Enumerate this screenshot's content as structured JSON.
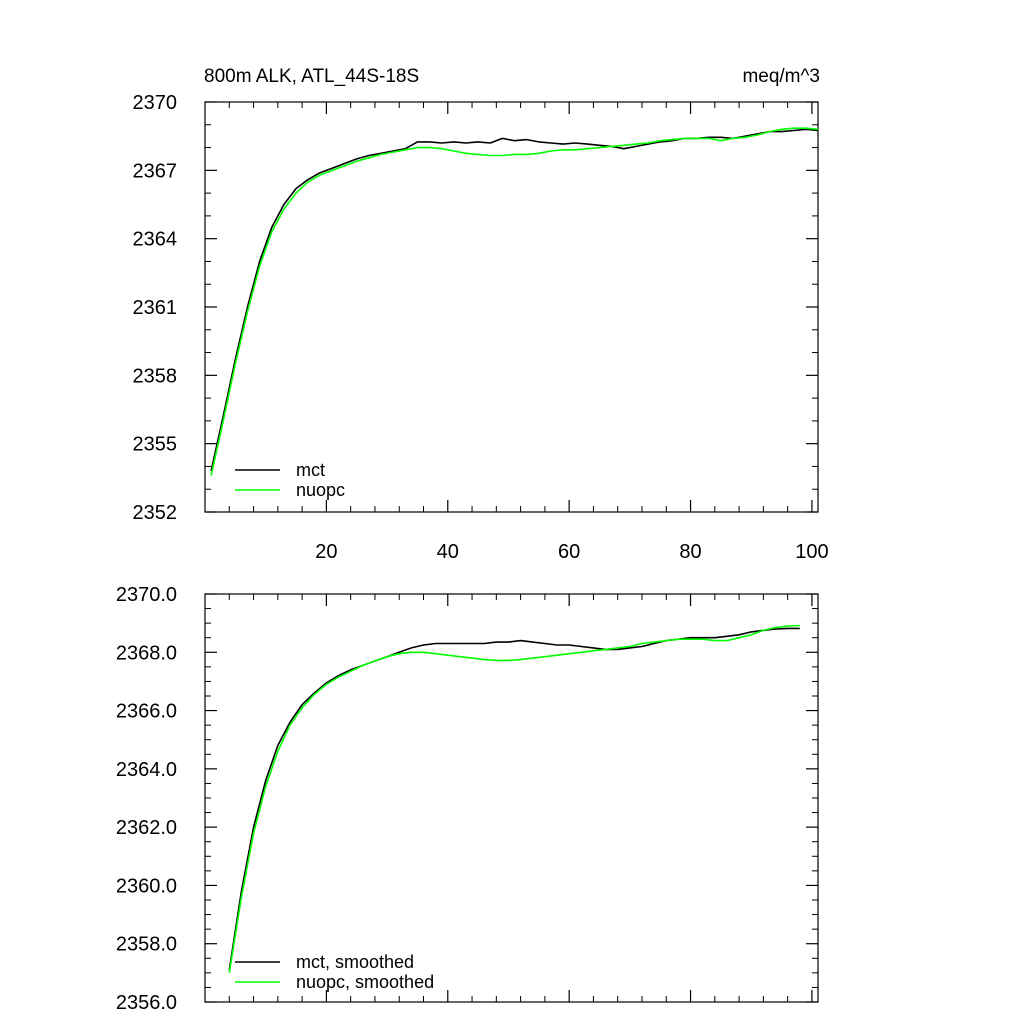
{
  "chart_data": [
    {
      "type": "line",
      "title": "800m ALK, ATL_44S-18S",
      "units": "meq/m^3",
      "xlim": [
        0,
        101
      ],
      "ylim": [
        2352,
        2370
      ],
      "xticks": [
        20,
        40,
        60,
        80,
        100
      ],
      "xtick_labels": [
        "20",
        "40",
        "60",
        "80",
        "100"
      ],
      "yticks": [
        2352,
        2355,
        2358,
        2361,
        2364,
        2367,
        2370
      ],
      "ytick_labels": [
        "2352",
        "2355",
        "2358",
        "2361",
        "2364",
        "2367",
        "2370"
      ],
      "grid": false,
      "legend_position": "bottom-left",
      "series": [
        {
          "name": "mct",
          "color": "#000000",
          "x": [
            1,
            3,
            5,
            7,
            9,
            11,
            13,
            15,
            17,
            19,
            21,
            23,
            25,
            27,
            29,
            31,
            33,
            35,
            37,
            39,
            41,
            43,
            45,
            47,
            49,
            51,
            53,
            55,
            57,
            59,
            61,
            63,
            65,
            67,
            69,
            71,
            73,
            75,
            77,
            79,
            81,
            83,
            85,
            87,
            89,
            91,
            93,
            95,
            97,
            99,
            101
          ],
          "values": [
            2353.8,
            2356.2,
            2358.7,
            2361.0,
            2363.0,
            2364.5,
            2365.5,
            2366.2,
            2366.6,
            2366.9,
            2367.1,
            2367.3,
            2367.5,
            2367.65,
            2367.75,
            2367.85,
            2367.95,
            2368.25,
            2368.25,
            2368.2,
            2368.25,
            2368.2,
            2368.25,
            2368.2,
            2368.4,
            2368.3,
            2368.35,
            2368.25,
            2368.2,
            2368.15,
            2368.2,
            2368.15,
            2368.1,
            2368.05,
            2367.95,
            2368.05,
            2368.15,
            2368.25,
            2368.3,
            2368.4,
            2368.4,
            2368.45,
            2368.45,
            2368.4,
            2368.5,
            2368.6,
            2368.7,
            2368.7,
            2368.75,
            2368.8,
            2368.75
          ]
        },
        {
          "name": "nuopc",
          "color": "#00ff00",
          "x": [
            1,
            3,
            5,
            7,
            9,
            11,
            13,
            15,
            17,
            19,
            21,
            23,
            25,
            27,
            29,
            31,
            33,
            35,
            37,
            39,
            41,
            43,
            45,
            47,
            49,
            51,
            53,
            55,
            57,
            59,
            61,
            63,
            65,
            67,
            69,
            71,
            73,
            75,
            77,
            79,
            81,
            83,
            85,
            87,
            89,
            91,
            93,
            95,
            97,
            99,
            101
          ],
          "values": [
            2353.6,
            2356.0,
            2358.5,
            2360.8,
            2362.8,
            2364.3,
            2365.3,
            2366.0,
            2366.5,
            2366.8,
            2367.0,
            2367.2,
            2367.4,
            2367.55,
            2367.7,
            2367.8,
            2367.9,
            2368.0,
            2368.0,
            2367.95,
            2367.85,
            2367.75,
            2367.7,
            2367.65,
            2367.65,
            2367.7,
            2367.7,
            2367.75,
            2367.85,
            2367.9,
            2367.9,
            2367.95,
            2368.0,
            2368.05,
            2368.1,
            2368.15,
            2368.2,
            2368.3,
            2368.35,
            2368.4,
            2368.4,
            2368.4,
            2368.3,
            2368.4,
            2368.45,
            2368.55,
            2368.7,
            2368.8,
            2368.85,
            2368.85,
            2368.8
          ]
        }
      ]
    },
    {
      "type": "line",
      "title": "",
      "xlim": [
        0,
        101
      ],
      "ylim": [
        2356,
        2370
      ],
      "xticks": [
        20,
        40,
        60,
        80,
        100
      ],
      "xtick_labels": [],
      "yticks": [
        2356,
        2358,
        2360,
        2362,
        2364,
        2366,
        2368,
        2370
      ],
      "ytick_labels": [
        "2356.0",
        "2358.0",
        "2360.0",
        "2362.0",
        "2364.0",
        "2366.0",
        "2368.0",
        "2370.0"
      ],
      "grid": false,
      "legend_position": "bottom-left",
      "series": [
        {
          "name": "mct, smoothed",
          "color": "#000000",
          "x": [
            4,
            6,
            8,
            10,
            12,
            14,
            16,
            18,
            20,
            22,
            24,
            26,
            28,
            30,
            32,
            34,
            36,
            38,
            40,
            42,
            44,
            46,
            48,
            50,
            52,
            54,
            56,
            58,
            60,
            62,
            64,
            66,
            68,
            70,
            72,
            74,
            76,
            78,
            80,
            82,
            84,
            86,
            88,
            90,
            92,
            94,
            96,
            98
          ],
          "values": [
            2357.1,
            2359.8,
            2362.0,
            2363.6,
            2364.8,
            2365.6,
            2366.2,
            2366.6,
            2366.95,
            2367.2,
            2367.4,
            2367.55,
            2367.7,
            2367.85,
            2368.0,
            2368.15,
            2368.25,
            2368.3,
            2368.3,
            2368.3,
            2368.3,
            2368.3,
            2368.35,
            2368.35,
            2368.4,
            2368.35,
            2368.3,
            2368.25,
            2368.25,
            2368.2,
            2368.15,
            2368.1,
            2368.1,
            2368.15,
            2368.2,
            2368.3,
            2368.4,
            2368.45,
            2368.5,
            2368.5,
            2368.5,
            2368.55,
            2368.6,
            2368.7,
            2368.75,
            2368.8,
            2368.82,
            2368.82
          ]
        },
        {
          "name": "nuopc, smoothed",
          "color": "#00ff00",
          "x": [
            4,
            6,
            8,
            10,
            12,
            14,
            16,
            18,
            20,
            22,
            24,
            26,
            28,
            30,
            32,
            34,
            36,
            38,
            40,
            42,
            44,
            46,
            48,
            50,
            52,
            54,
            56,
            58,
            60,
            62,
            64,
            66,
            68,
            70,
            72,
            74,
            76,
            78,
            80,
            82,
            84,
            86,
            88,
            90,
            92,
            94,
            96,
            98
          ],
          "values": [
            2357.0,
            2359.6,
            2361.8,
            2363.4,
            2364.6,
            2365.5,
            2366.1,
            2366.55,
            2366.9,
            2367.15,
            2367.35,
            2367.55,
            2367.7,
            2367.85,
            2367.95,
            2368.0,
            2368.0,
            2367.95,
            2367.9,
            2367.85,
            2367.8,
            2367.75,
            2367.72,
            2367.72,
            2367.75,
            2367.8,
            2367.85,
            2367.9,
            2367.95,
            2368.0,
            2368.05,
            2368.1,
            2368.15,
            2368.2,
            2368.3,
            2368.35,
            2368.4,
            2368.45,
            2368.45,
            2368.45,
            2368.4,
            2368.4,
            2368.5,
            2368.6,
            2368.75,
            2368.85,
            2368.9,
            2368.92
          ]
        }
      ]
    }
  ]
}
